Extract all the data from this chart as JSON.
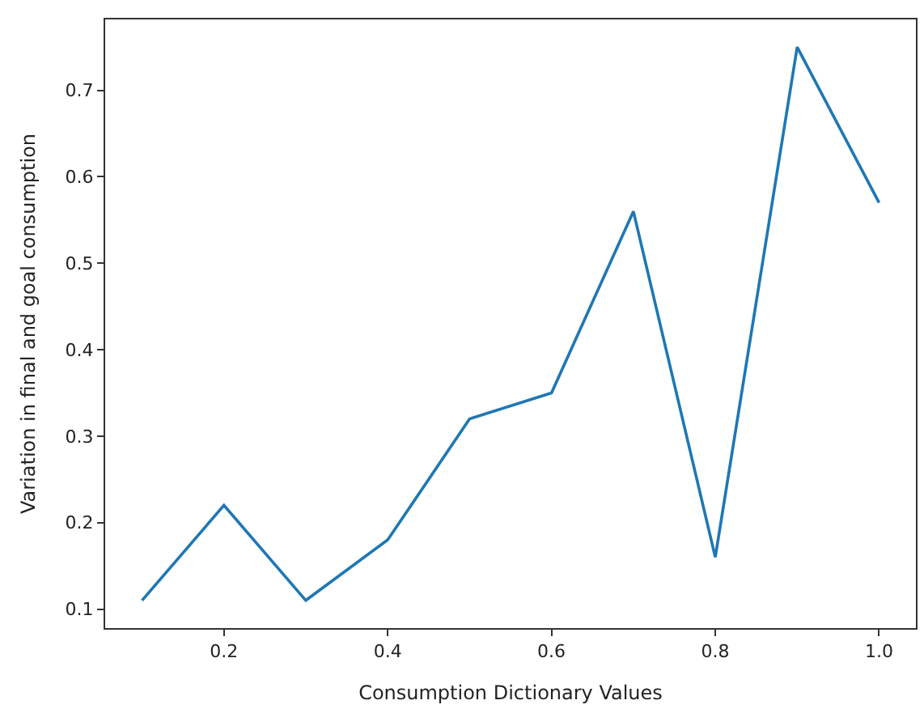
{
  "chart_data": {
    "type": "line",
    "xlabel": "Consumption Dictionary Values",
    "ylabel": "Variation in final and goal consumption",
    "x": [
      0.1,
      0.2,
      0.3,
      0.4,
      0.5,
      0.6,
      0.7,
      0.8,
      0.9,
      1.0
    ],
    "series": [
      {
        "color": "#1f77b4",
        "values": [
          0.11,
          0.22,
          0.11,
          0.18,
          0.32,
          0.35,
          0.56,
          0.16,
          0.75,
          0.57
        ]
      }
    ],
    "xlim": [
      0.055,
      1.045
    ],
    "xticks": [
      0.2,
      0.4,
      0.6,
      0.8,
      {
        "value": 1,
        "label": "1.0"
      }
    ],
    "ylim": [
      0.078,
      0.782
    ],
    "yticks": [
      0.1,
      0.2,
      0.3,
      0.4,
      0.5,
      0.6,
      0.7
    ],
    "legend": false,
    "marker": "none",
    "line_style": "solid"
  }
}
